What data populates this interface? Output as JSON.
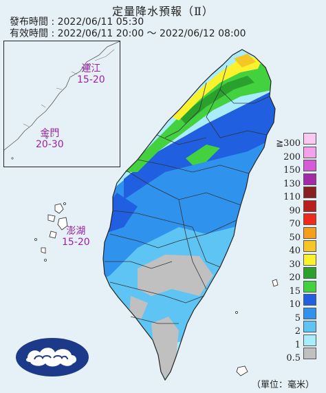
{
  "title": "定量降水預報（Ⅱ）",
  "issue_time": "發布時間 : 2022/06/11 05:30",
  "valid_time": "有效時間 : 2022/06/11 20:00 ～ 2022/06/12 08:00",
  "regions": [
    {
      "name": "連江",
      "range": "15-20"
    },
    {
      "name": "金門",
      "range": "20-30"
    },
    {
      "name": "澎湖",
      "range": "15-20"
    }
  ],
  "legend": {
    "items": [
      {
        "label": "≧300",
        "color": "#fbc8f2"
      },
      {
        "label": "200",
        "color": "#f5a0ea"
      },
      {
        "label": "150",
        "color": "#d65ad8"
      },
      {
        "label": "130",
        "color": "#a52aa9"
      },
      {
        "label": "110",
        "color": "#8b1e1e"
      },
      {
        "label": "90",
        "color": "#b91f1f"
      },
      {
        "label": "70",
        "color": "#ee2b1a"
      },
      {
        "label": "50",
        "color": "#f79e1b"
      },
      {
        "label": "40",
        "color": "#f6c624"
      },
      {
        "label": "30",
        "color": "#faf22c"
      },
      {
        "label": "20",
        "color": "#2aa12c"
      },
      {
        "label": "15",
        "color": "#43d13f"
      },
      {
        "label": "10",
        "color": "#1f5fe0"
      },
      {
        "label": "5",
        "color": "#2f93ee"
      },
      {
        "label": "2",
        "color": "#5dc4f3"
      },
      {
        "label": "1",
        "color": "#a9ecfb"
      },
      {
        "label": "0.5",
        "color": "#c0c0c0"
      }
    ]
  },
  "unit_label": "（單位：毫米）",
  "colors": {
    "sea": "#e6f0f7",
    "border": "#222222",
    "label": "#9b1fa8"
  },
  "logo_icon": "cwb-cloud-logo-icon"
}
